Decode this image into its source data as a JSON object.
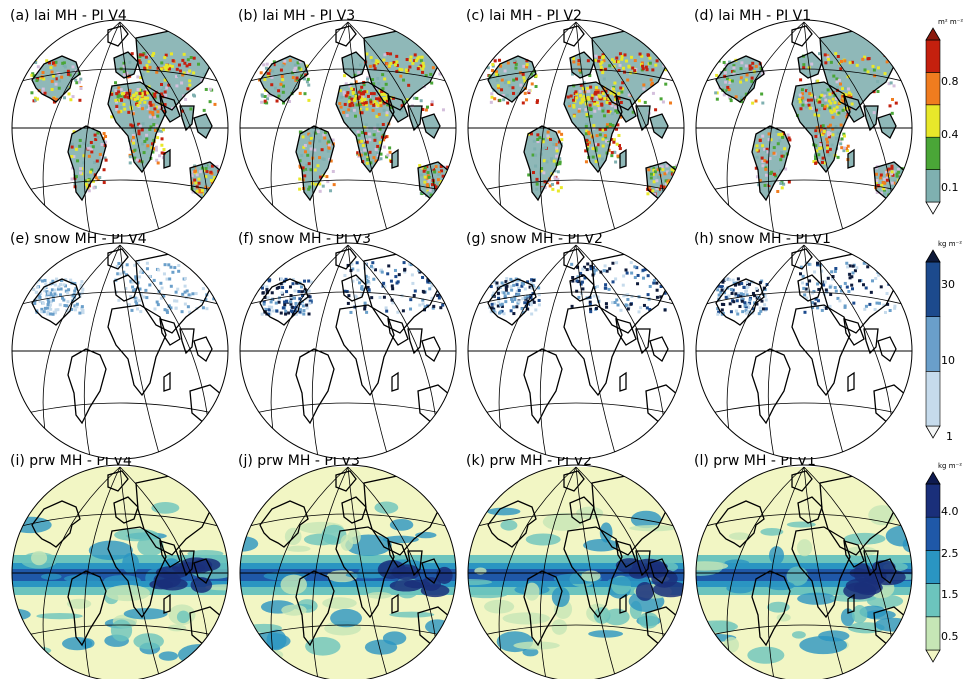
{
  "rows": [
    {
      "variable": "lai",
      "panels": [
        {
          "title": "(a) lai MH - PI V4"
        },
        {
          "title": "(b) lai MH - PI V3"
        },
        {
          "title": "(c) lai MH - PI V2"
        },
        {
          "title": "(d) lai MH - PI V1"
        }
      ],
      "colorbar": {
        "unit": "m² m⁻²",
        "ticks": [
          "0.1",
          "0.4",
          "0.8"
        ],
        "colors": [
          "#d4bfdc",
          "#7fb0b0",
          "#4aa637",
          "#e8e82a",
          "#f07c1f",
          "#c4200e",
          "#8b1a0e"
        ]
      }
    },
    {
      "variable": "snow",
      "panels": [
        {
          "title": "(e) snow MH - PI V4"
        },
        {
          "title": "(f) snow MH - PI V3"
        },
        {
          "title": "(g) snow MH - PI V2"
        },
        {
          "title": "(h) snow MH - PI V1"
        }
      ],
      "colorbar": {
        "unit": "kg m⁻²",
        "ticks": [
          "1",
          "10",
          "30"
        ],
        "colors": [
          "#f4f6f6",
          "#c6dbec",
          "#6a9fca",
          "#1c4a8d",
          "#0e1a3a"
        ]
      }
    },
    {
      "variable": "prw",
      "panels": [
        {
          "title": "(i) prw MH - PI V4"
        },
        {
          "title": "(j) prw MH - PI V3"
        },
        {
          "title": "(k) prw MH - PI V2"
        },
        {
          "title": "(l) prw MH - PI V1"
        }
      ],
      "colorbar": {
        "unit": "kg m⁻²",
        "ticks": [
          "0.5",
          "1.5",
          "2.5",
          "4.0"
        ],
        "colors": [
          "#f2f6c4",
          "#c6e6b6",
          "#6cc4bd",
          "#2a95c2",
          "#1f58a8",
          "#1a2f7a",
          "#0e1a4f"
        ]
      }
    }
  ]
}
